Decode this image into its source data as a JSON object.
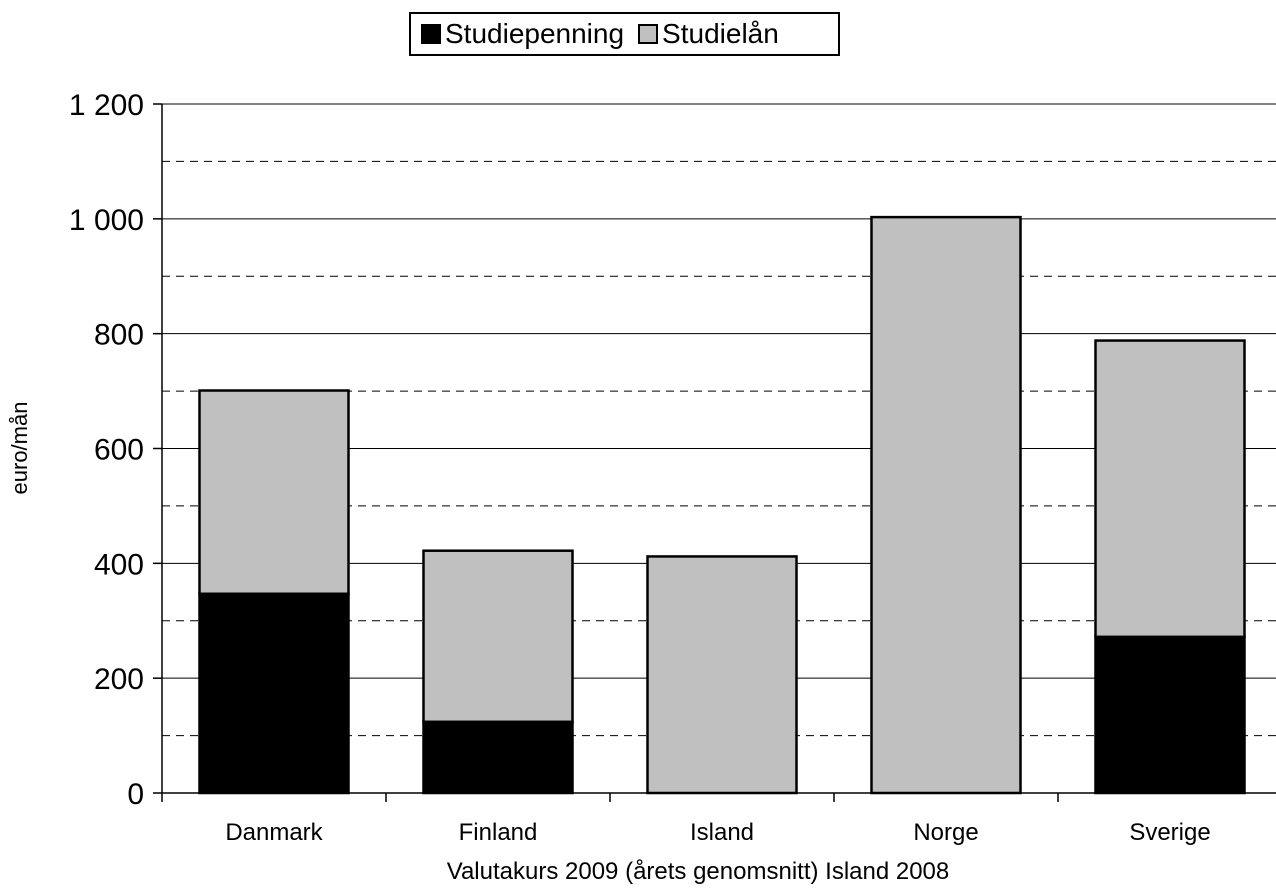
{
  "chart_data": {
    "type": "bar",
    "stacked": true,
    "categories": [
      "Danmark",
      "Finland",
      "Island",
      "Norge",
      "Sverige"
    ],
    "series": [
      {
        "name": "Studiepenning",
        "values": [
          347,
          124,
          0,
          0,
          272
        ],
        "color": "#000000"
      },
      {
        "name": "Studielån",
        "values": [
          354,
          298,
          412,
          1003,
          516
        ],
        "color": "#c0c0c0"
      }
    ],
    "title": "",
    "xlabel": "Valutakurs 2009 (årets genomsnitt) Island 2008",
    "ylabel": "euro/mån",
    "ylim": [
      0,
      1200
    ],
    "yticks": [
      0,
      200,
      400,
      600,
      800,
      1000,
      1200
    ],
    "ytick_labels": [
      "0",
      "200",
      "400",
      "600",
      "800",
      "1 000",
      "1 200"
    ],
    "minor_gridlines_dashed": [
      100,
      300,
      500,
      700,
      900,
      1100
    ],
    "grid": true,
    "legend_position": "top-center"
  }
}
